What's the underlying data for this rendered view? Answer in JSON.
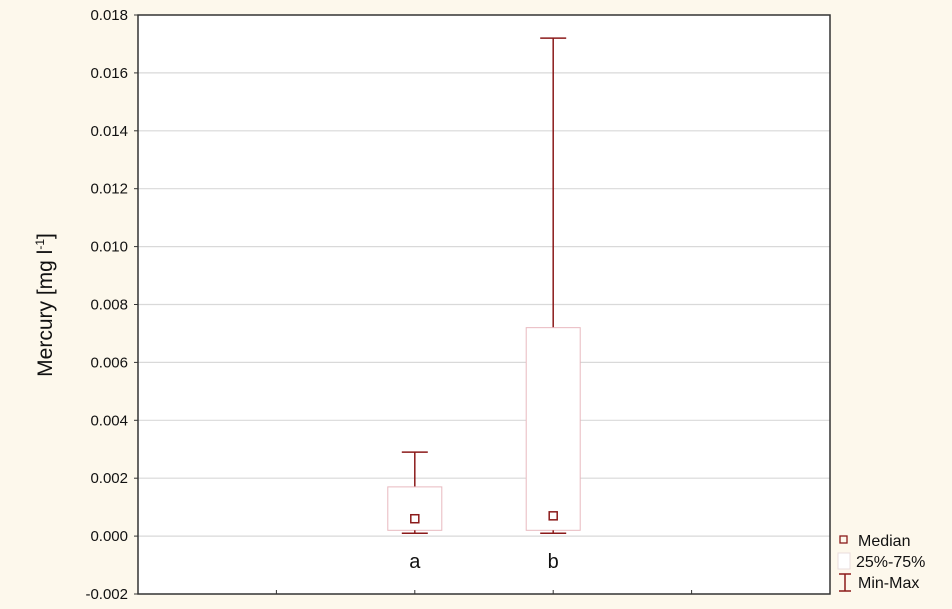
{
  "chart_data": {
    "type": "box",
    "title": "",
    "xlabel": "",
    "ylabel": "Mercury [mg l",
    "ylabel_sup": "-1",
    "ylabel_end": "]",
    "ylim": [
      -0.002,
      0.018
    ],
    "yticks": [
      "-0.002",
      "0.000",
      "0.002",
      "0.004",
      "0.006",
      "0.008",
      "0.010",
      "0.012",
      "0.014",
      "0.016",
      "0.018"
    ],
    "grid": true,
    "legend_placement": "bottom-right outside",
    "categories": [
      "a",
      "b"
    ],
    "boxes": [
      {
        "name": "a",
        "min": 0.0001,
        "q1": 0.0002,
        "median": 0.0006,
        "q3": 0.0017,
        "max": 0.0029
      },
      {
        "name": "b",
        "min": 0.0001,
        "q1": 0.0002,
        "median": 0.0007,
        "q3": 0.0072,
        "max": 0.0172
      }
    ],
    "legend": [
      "Median",
      "25%-75%",
      "Min-Max"
    ],
    "colors": {
      "whisker": "#8b1a1a",
      "box": "#e8b8bf",
      "grid": "#d9d9d9",
      "background": "#fdf8ec"
    }
  }
}
